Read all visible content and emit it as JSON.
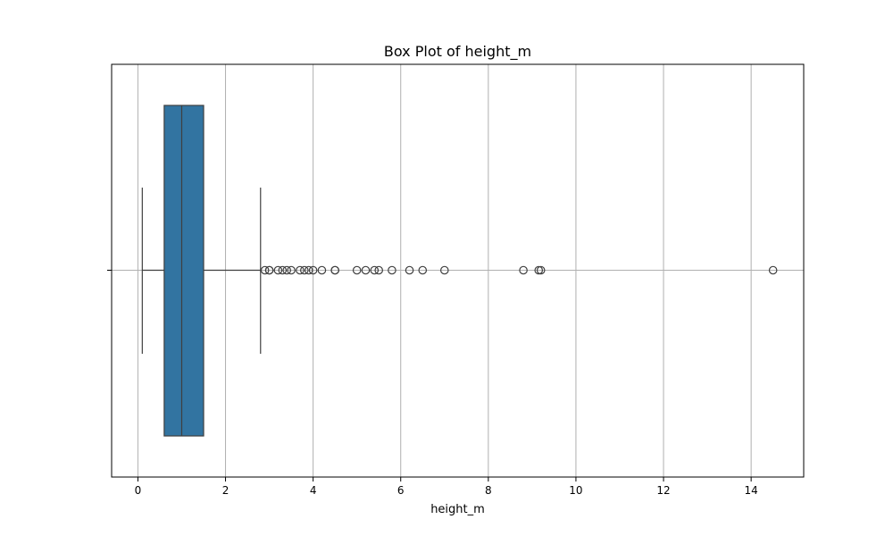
{
  "chart_data": {
    "type": "box",
    "title": "Box Plot of height_m",
    "xlabel": "height_m",
    "ylabel": "",
    "orientation": "horizontal",
    "xlim": [
      -0.6,
      15.2
    ],
    "xticks": [
      0,
      2,
      4,
      6,
      8,
      10,
      12,
      14
    ],
    "grid": true,
    "colors": {
      "box_fill": "#3274a1",
      "line": "#3f3f3f",
      "grid": "#b0b0b0",
      "spine": "#000000"
    },
    "box": {
      "whisker_low": 0.1,
      "q1": 0.6,
      "median": 1.0,
      "q3": 1.5,
      "whisker_high": 2.8
    },
    "outliers": [
      2.9,
      3.0,
      3.0,
      3.2,
      3.3,
      3.4,
      3.5,
      3.7,
      3.8,
      3.9,
      4.0,
      4.2,
      4.5,
      4.5,
      5.0,
      5.2,
      5.4,
      5.5,
      5.8,
      6.2,
      6.5,
      7.0,
      8.8,
      9.15,
      9.2,
      14.5
    ]
  }
}
